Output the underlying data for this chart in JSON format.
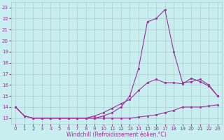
{
  "xlabel": "Windchill (Refroidissement éolien,°C)",
  "background_color": "#c8eef0",
  "line_color": "#993399",
  "grid_color": "#b0cccc",
  "x_values": [
    0,
    1,
    2,
    3,
    4,
    5,
    6,
    7,
    8,
    9,
    10,
    11,
    12,
    13,
    14,
    15,
    16,
    17,
    18,
    19,
    20,
    21,
    22,
    23
  ],
  "line1_spike": [
    14.0,
    13.2,
    13.0,
    13.0,
    13.0,
    13.0,
    13.0,
    13.0,
    13.0,
    13.0,
    13.2,
    13.5,
    14.0,
    15.0,
    17.5,
    21.7,
    22.0,
    22.8,
    19.0,
    16.2,
    16.3,
    16.5,
    16.0,
    15.0
  ],
  "line2_mid": [
    14.0,
    13.2,
    13.0,
    13.0,
    13.0,
    13.0,
    13.0,
    13.0,
    13.0,
    13.2,
    13.5,
    13.9,
    14.3,
    14.7,
    15.5,
    16.2,
    16.5,
    16.2,
    16.2,
    16.1,
    16.6,
    16.3,
    15.9,
    15.0
  ],
  "line3_flat": [
    14.0,
    13.2,
    13.0,
    13.0,
    13.0,
    13.0,
    13.0,
    13.0,
    13.0,
    13.0,
    13.0,
    13.0,
    13.0,
    13.0,
    13.1,
    13.2,
    13.3,
    13.5,
    13.7,
    14.0,
    14.0,
    14.0,
    14.1,
    14.2
  ],
  "xlim": [
    -0.5,
    23.5
  ],
  "ylim": [
    12.5,
    23.5
  ],
  "yticks": [
    13,
    14,
    15,
    16,
    17,
    18,
    19,
    20,
    21,
    22,
    23
  ],
  "xticks": [
    0,
    1,
    2,
    3,
    4,
    5,
    6,
    7,
    8,
    9,
    10,
    11,
    12,
    13,
    14,
    15,
    16,
    17,
    18,
    19,
    20,
    21,
    22,
    23
  ]
}
